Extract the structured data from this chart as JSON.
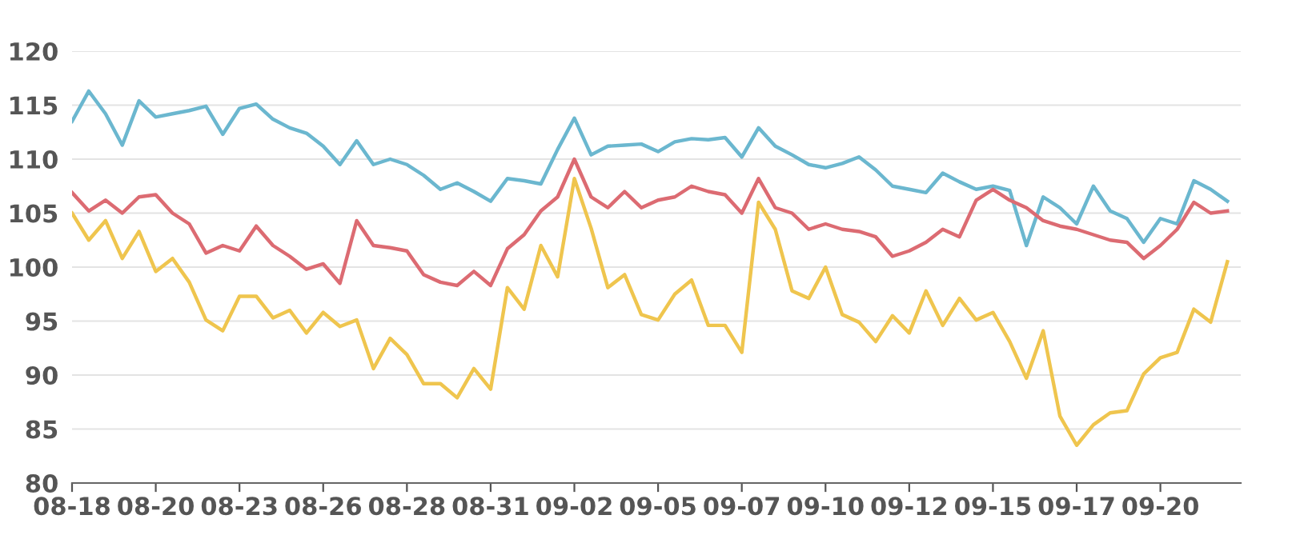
{
  "chart_data": {
    "type": "line",
    "ylim": [
      80,
      120
    ],
    "yticks": [
      80,
      85,
      90,
      95,
      100,
      105,
      110,
      115,
      120
    ],
    "categories": [
      "08-18",
      null,
      null,
      null,
      null,
      "08-20",
      null,
      null,
      null,
      null,
      "08-23",
      null,
      null,
      null,
      null,
      "08-26",
      null,
      null,
      null,
      null,
      "08-28",
      null,
      null,
      null,
      null,
      "08-31",
      null,
      null,
      null,
      null,
      "09-02",
      null,
      null,
      null,
      null,
      "09-05",
      null,
      null,
      null,
      null,
      "09-07",
      null,
      null,
      null,
      null,
      "09-10",
      null,
      null,
      null,
      null,
      "09-12",
      null,
      null,
      null,
      null,
      "09-15",
      null,
      null,
      null,
      null,
      "09-17",
      null,
      null,
      null,
      null,
      "09-20",
      null,
      null,
      null,
      null
    ],
    "grid": "y",
    "marker": "none",
    "line_style": "solid",
    "series": [
      {
        "color": "#6bb7cf",
        "values": [
          113.5,
          116.3,
          114.2,
          111.3,
          115.4,
          113.9,
          114.2,
          114.5,
          114.9,
          112.3,
          114.7,
          115.1,
          113.7,
          112.9,
          112.4,
          111.2,
          109.5,
          111.7,
          109.5,
          110,
          109.5,
          108.5,
          107.2,
          107.8,
          107,
          106.1,
          108.2,
          108,
          107.7,
          110.9,
          113.8,
          110.4,
          111.2,
          111.3,
          111.4,
          110.7,
          111.6,
          111.9,
          111.8,
          112,
          110.2,
          112.9,
          111.2,
          110.4,
          109.5,
          109.2,
          109.6,
          110.2,
          109,
          107.5,
          107.2,
          106.9,
          108.7,
          107.9,
          107.2,
          107.5,
          107.1,
          102,
          106.5,
          105.5,
          104,
          107.5,
          105.2,
          104.5,
          102.3,
          104.5,
          104,
          108,
          107.2,
          106.1
        ]
      },
      {
        "color": "#dc6b72",
        "values": [
          106.9,
          105.2,
          106.2,
          105,
          106.5,
          106.7,
          105,
          104,
          101.3,
          102,
          101.5,
          103.8,
          102,
          101,
          99.8,
          100.3,
          98.5,
          104.3,
          102,
          101.8,
          101.5,
          99.3,
          98.6,
          98.3,
          99.6,
          98.3,
          101.7,
          103,
          105.2,
          106.5,
          110,
          106.5,
          105.5,
          107,
          105.5,
          106.2,
          106.5,
          107.5,
          107,
          106.7,
          105,
          108.2,
          105.5,
          105,
          103.5,
          104,
          103.5,
          103.3,
          102.8,
          101,
          101.5,
          102.3,
          103.5,
          102.8,
          106.2,
          107.2,
          106.2,
          105.5,
          104.3,
          103.8,
          103.5,
          103,
          102.5,
          102.3,
          100.8,
          102,
          103.5,
          106,
          105,
          105.2
        ]
      },
      {
        "color": "#efc54e",
        "values": [
          105,
          102.5,
          104.3,
          100.8,
          103.3,
          99.6,
          100.8,
          98.6,
          95.1,
          94.1,
          97.3,
          97.3,
          95.3,
          96,
          93.9,
          95.8,
          94.5,
          95.1,
          90.6,
          93.4,
          91.9,
          89.2,
          89.2,
          87.9,
          90.6,
          88.7,
          98.1,
          96.1,
          102,
          99.1,
          108.2,
          103.6,
          98.1,
          99.3,
          95.6,
          95.1,
          97.5,
          98.8,
          94.6,
          94.6,
          92.1,
          106,
          103.5,
          97.8,
          97.1,
          100,
          95.6,
          94.9,
          93.1,
          95.5,
          93.9,
          97.8,
          94.6,
          97.1,
          95.1,
          95.8,
          93.1,
          89.7,
          94.1,
          86.2,
          83.5,
          85.4,
          86.5,
          86.7,
          90.1,
          91.6,
          92.1,
          96.1,
          94.9,
          100.5
        ]
      }
    ]
  }
}
